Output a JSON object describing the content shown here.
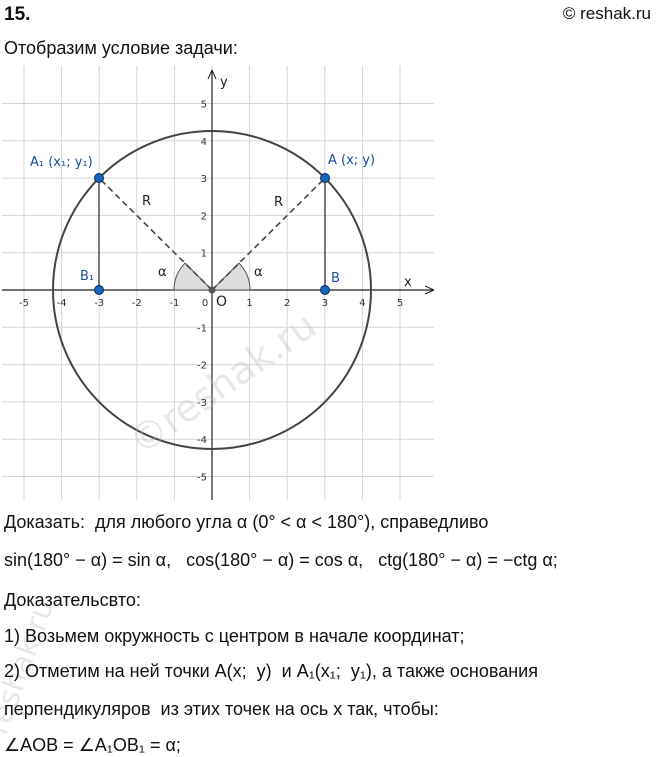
{
  "header": {
    "number": "15.",
    "copyright": "© reshak.ru"
  },
  "intro": "Отобразим условие задачи:",
  "figure": {
    "x_label": "x",
    "y_label": "y",
    "origin": "O",
    "xticks": [
      -5,
      -4,
      -3,
      -2,
      -1,
      0,
      1,
      2,
      3,
      4,
      5
    ],
    "yticks": [
      5,
      4,
      3,
      2,
      1,
      -1,
      -2,
      -3,
      -4,
      -5
    ],
    "point_a": "A (x; y)",
    "point_a1": "A₁ (x₁; y₁)",
    "point_b": "B",
    "point_b1": "B₁",
    "radius_left": "R",
    "radius_right": "R",
    "angle_left": "α",
    "angle_right": "α"
  },
  "body": [
    "Доказать:  для любого угла α (0° < α < 180°), справедливо",
    "sin(180° − α) = sin α,   cos(180° − α) = cos α,   ctg(180° − α) = −ctg α;",
    "Доказательсвто:",
    "1) Возьмем окружность с центром в начале координат;",
    "2) Отметим на ней точки A(x;  y)  и A₁(x₁;  y₁), а также основания",
    "перпендикуляров  из этих точек на ось x так, чтобы:",
    "∠AOB = ∠A₁OB₁ = α;"
  ],
  "watermarks": [
    "©reshak.ru",
    "reshak.ru"
  ]
}
